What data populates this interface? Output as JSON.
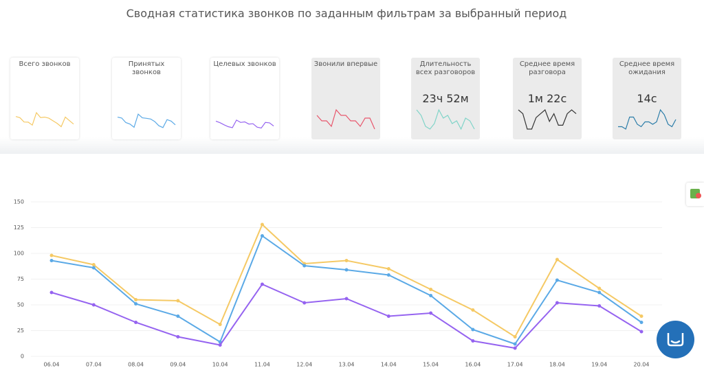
{
  "header": {
    "title": "Сводная статистика звонков по заданным фильтрам за выбранный период"
  },
  "cards": [
    {
      "label": "Всего звонков",
      "color": "#f5c964",
      "series": 0
    },
    {
      "label": "Принятых звонков",
      "color": "#5aa9e6",
      "series": 1
    },
    {
      "label": "Целевых звонков",
      "color": "#9563f0",
      "series": 2
    },
    {
      "label": "Звонили впервые",
      "color": "#e8566c",
      "trend": [
        7,
        5,
        5,
        3,
        9,
        7,
        7,
        5,
        5,
        3,
        6,
        6,
        2
      ]
    },
    {
      "label": "Длительность всех разговоров",
      "value": "23ч 52м",
      "color": "#7fd4c8",
      "trend": [
        9,
        7,
        3,
        2,
        4,
        9,
        6,
        7,
        4,
        5,
        2,
        6,
        5,
        2
      ]
    },
    {
      "label": "Среднее время разговора",
      "value": "1м 22с",
      "color": "#333333",
      "trend": [
        8,
        7,
        3,
        3,
        6,
        7,
        8,
        5,
        7,
        4,
        4,
        7,
        8,
        7
      ]
    },
    {
      "label": "Среднее время ожидания",
      "value": "14с",
      "color": "#2a7ca8",
      "trend": [
        2,
        2,
        1,
        6,
        6,
        3,
        2,
        4,
        4,
        3,
        4,
        9,
        7,
        3,
        2,
        5
      ]
    }
  ],
  "chart_data": {
    "type": "line",
    "categories": [
      "06.04",
      "07.04",
      "08.04",
      "09.04",
      "10.04",
      "11.04",
      "12.04",
      "13.04",
      "14.04",
      "15.04",
      "16.04",
      "17.04",
      "18.04",
      "19.04",
      "20.04"
    ],
    "series": [
      {
        "color": "#f5c964",
        "values": [
          98,
          89,
          55,
          54,
          31,
          128,
          90,
          93,
          85,
          65,
          45,
          19,
          94,
          66,
          39
        ]
      },
      {
        "color": "#5aa9e6",
        "values": [
          93,
          86,
          51,
          39,
          14,
          117,
          88,
          84,
          79,
          59,
          26,
          12,
          74,
          62,
          33
        ]
      },
      {
        "color": "#9563f0",
        "values": [
          62,
          50,
          33,
          19,
          11,
          70,
          52,
          56,
          39,
          42,
          15,
          8,
          52,
          49,
          24
        ]
      }
    ],
    "ylim": [
      0,
      150
    ],
    "yticks": [
      0,
      25,
      50,
      75,
      100,
      125,
      150
    ],
    "grid": true
  }
}
